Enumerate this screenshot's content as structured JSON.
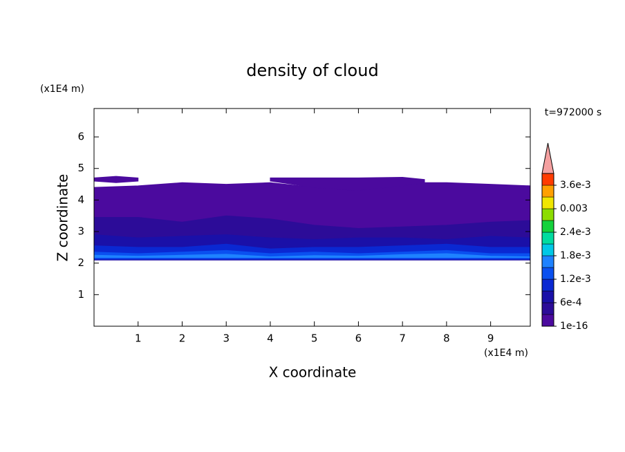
{
  "chart_data": {
    "type": "contour",
    "title": "density of cloud",
    "x_label": "X coordinate",
    "y_label": "Z coordinate",
    "x_unit": "(x1E4 m)",
    "y_unit": "(x1E4 m)",
    "annotation": "t=972000 s",
    "xlim": [
      0,
      9.9
    ],
    "ylim": [
      0,
      6.9
    ],
    "xticks": [
      1,
      2,
      3,
      4,
      5,
      6,
      7,
      8,
      9
    ],
    "yticks": [
      1,
      2,
      3,
      4,
      5,
      6
    ],
    "colorbar": {
      "levels": [
        1e-16,
        0.0003,
        0.0006,
        0.0009,
        0.0012,
        0.0015,
        0.0018,
        0.0021,
        0.0024,
        0.0027,
        0.003,
        0.0033,
        0.0036,
        0.0039
      ],
      "colors": [
        "#4b0a9e",
        "#2c0c98",
        "#1a10a8",
        "#0a28d2",
        "#0a50f0",
        "#1e82ff",
        "#00c8e6",
        "#00dca0",
        "#14d23c",
        "#8cdc00",
        "#f0e600",
        "#ffa000",
        "#ff3c00"
      ],
      "extend_color": "#f4a0a0",
      "ticks": [
        {
          "value": 1e-16,
          "label": "1e-16"
        },
        {
          "value": 0.0006,
          "label": "6e-4"
        },
        {
          "value": 0.0012,
          "label": "1.2e-3"
        },
        {
          "value": 0.0018,
          "label": "1.8e-3"
        },
        {
          "value": 0.0024,
          "label": "2.4e-3"
        },
        0.003,
        {
          "value": 0.0036,
          "label": "3.6e-3"
        }
      ]
    },
    "layers": [
      {
        "level": 0,
        "x": [
          0,
          1,
          2,
          3,
          4,
          5,
          6,
          7,
          8,
          9,
          9.9
        ],
        "top": [
          4.4,
          4.45,
          4.55,
          4.5,
          4.55,
          4.4,
          4.3,
          4.55,
          4.55,
          4.5,
          4.45
        ],
        "bottom": [
          2.1,
          2.1,
          2.1,
          2.1,
          2.1,
          2.1,
          2.1,
          2.1,
          2.1,
          2.1,
          2.1
        ]
      },
      {
        "level": 0,
        "x": [
          0,
          0.5,
          1.0
        ],
        "top": [
          4.7,
          4.75,
          4.7
        ],
        "bottom": [
          4.6,
          4.55,
          4.6
        ]
      },
      {
        "level": 0,
        "x": [
          4.0,
          5.0,
          6.0,
          7.0,
          7.5
        ],
        "top": [
          4.7,
          4.7,
          4.7,
          4.72,
          4.65
        ],
        "bottom": [
          4.6,
          4.4,
          4.3,
          4.45,
          4.55
        ]
      },
      {
        "level": 1,
        "x": [
          0,
          1,
          2,
          3,
          4,
          5,
          6,
          7,
          8,
          9,
          9.9
        ],
        "top": [
          3.45,
          3.45,
          3.3,
          3.5,
          3.4,
          3.2,
          3.1,
          3.15,
          3.2,
          3.3,
          3.35
        ],
        "bottom": [
          2.1,
          2.1,
          2.1,
          2.1,
          2.1,
          2.1,
          2.1,
          2.1,
          2.1,
          2.1,
          2.1
        ]
      },
      {
        "level": 2,
        "x": [
          0,
          1,
          2,
          3,
          4,
          5,
          6,
          7,
          8,
          9,
          9.9
        ],
        "top": [
          2.9,
          2.8,
          2.85,
          2.9,
          2.8,
          2.75,
          2.8,
          2.8,
          2.75,
          2.85,
          2.8
        ],
        "bottom": [
          2.1,
          2.1,
          2.1,
          2.1,
          2.1,
          2.1,
          2.1,
          2.1,
          2.1,
          2.1,
          2.1
        ]
      },
      {
        "level": 3,
        "x": [
          0,
          1,
          2,
          3,
          4,
          5,
          6,
          7,
          8,
          9,
          9.9
        ],
        "top": [
          2.55,
          2.5,
          2.5,
          2.6,
          2.45,
          2.5,
          2.5,
          2.55,
          2.6,
          2.5,
          2.5
        ],
        "bottom": [
          2.12,
          2.12,
          2.12,
          2.12,
          2.12,
          2.12,
          2.12,
          2.12,
          2.12,
          2.12,
          2.12
        ]
      },
      {
        "level": 4,
        "x": [
          0,
          1,
          2,
          3,
          4,
          5,
          6,
          7,
          8,
          9,
          9.9
        ],
        "top": [
          2.35,
          2.3,
          2.35,
          2.4,
          2.3,
          2.35,
          2.3,
          2.35,
          2.4,
          2.3,
          2.3
        ],
        "bottom": [
          2.15,
          2.15,
          2.15,
          2.15,
          2.15,
          2.15,
          2.15,
          2.15,
          2.15,
          2.15,
          2.15
        ]
      },
      {
        "level": 5,
        "x": [
          0,
          1,
          2,
          3,
          4,
          5,
          6,
          7,
          8,
          9,
          9.9
        ],
        "top": [
          2.25,
          2.22,
          2.25,
          2.28,
          2.2,
          2.24,
          2.22,
          2.27,
          2.3,
          2.22,
          2.2
        ],
        "bottom": [
          2.18,
          2.18,
          2.18,
          2.18,
          2.18,
          2.18,
          2.18,
          2.18,
          2.18,
          2.18,
          2.18
        ]
      }
    ]
  }
}
